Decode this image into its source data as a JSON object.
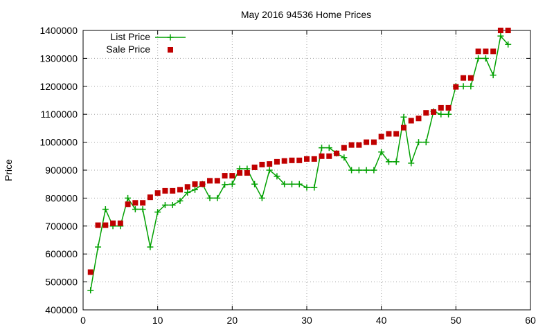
{
  "chart_data": {
    "type": "line",
    "title": "May 2016 94536 Home Prices",
    "xlabel": "",
    "ylabel": "Price",
    "xlim": [
      0,
      60
    ],
    "ylim": [
      400000,
      1400000
    ],
    "xticks": [
      0,
      10,
      20,
      30,
      40,
      50,
      60
    ],
    "yticks": [
      400000,
      500000,
      600000,
      700000,
      800000,
      900000,
      1000000,
      1100000,
      1200000,
      1300000,
      1400000
    ],
    "grid": true,
    "legend_position": "top-left",
    "series": [
      {
        "name": "List Price",
        "style": "line-with-plus-markers",
        "color": "#00a000",
        "x": [
          1,
          2,
          3,
          4,
          5,
          6,
          7,
          8,
          9,
          10,
          11,
          12,
          13,
          14,
          15,
          16,
          17,
          18,
          19,
          20,
          21,
          22,
          23,
          24,
          25,
          26,
          27,
          28,
          29,
          30,
          31,
          32,
          33,
          34,
          35,
          36,
          37,
          38,
          39,
          40,
          41,
          42,
          43,
          44,
          45,
          46,
          47,
          48,
          49,
          50,
          51,
          52,
          53,
          54,
          55,
          56,
          57
        ],
        "y": [
          470000,
          625000,
          760000,
          700000,
          700000,
          800000,
          760000,
          760000,
          625000,
          750000,
          775000,
          775000,
          790000,
          820000,
          830000,
          850000,
          800000,
          800000,
          848000,
          850000,
          905000,
          905000,
          850000,
          800000,
          900000,
          878000,
          850000,
          850000,
          850000,
          838000,
          838000,
          980000,
          980000,
          960000,
          945000,
          900000,
          900000,
          900000,
          900000,
          965000,
          930000,
          930000,
          1090000,
          925000,
          1000000,
          1000000,
          1110000,
          1100000,
          1100000,
          1200000,
          1200000,
          1200000,
          1300000,
          1300000,
          1240000,
          1380000,
          1350000
        ]
      },
      {
        "name": "Sale Price",
        "style": "square-markers",
        "color": "#c00000",
        "x": [
          1,
          2,
          3,
          4,
          5,
          6,
          7,
          8,
          9,
          10,
          11,
          12,
          13,
          14,
          15,
          16,
          17,
          18,
          19,
          20,
          21,
          22,
          23,
          24,
          25,
          26,
          27,
          28,
          29,
          30,
          31,
          32,
          33,
          34,
          35,
          36,
          37,
          38,
          39,
          40,
          41,
          42,
          43,
          44,
          45,
          46,
          47,
          48,
          49,
          50,
          51,
          52,
          53,
          54,
          55,
          56,
          57
        ],
        "y": [
          535000,
          703000,
          703000,
          710000,
          710000,
          778000,
          783000,
          783000,
          803000,
          818000,
          826000,
          826000,
          830000,
          840000,
          850000,
          850000,
          862000,
          862000,
          880000,
          880000,
          890000,
          890000,
          910000,
          920000,
          922000,
          930000,
          933000,
          935000,
          935000,
          940000,
          940000,
          950000,
          950000,
          960000,
          980000,
          990000,
          990000,
          1000000,
          1000000,
          1020000,
          1030000,
          1030000,
          1052000,
          1077000,
          1085000,
          1105000,
          1108000,
          1123000,
          1123000,
          1198000,
          1230000,
          1230000,
          1325000,
          1325000,
          1325000,
          1400000,
          1400000
        ]
      }
    ]
  }
}
